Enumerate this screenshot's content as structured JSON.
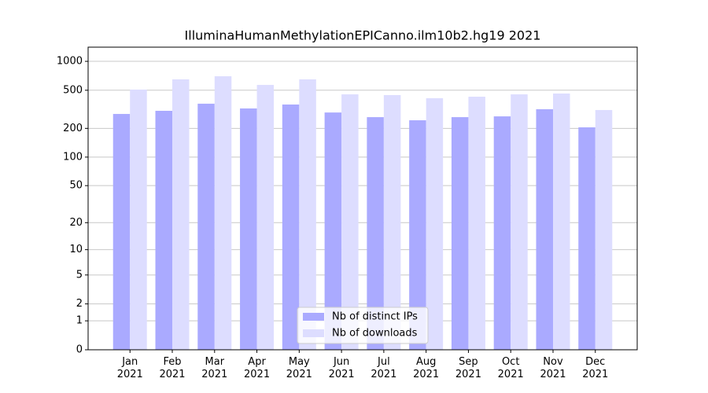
{
  "chart_data": {
    "type": "bar",
    "title": "IlluminaHumanMethylationEPICanno.ilm10b2.hg19 2021",
    "categories": [
      "Jan\n2021",
      "Feb\n2021",
      "Mar\n2021",
      "Apr\n2021",
      "May\n2021",
      "Jun\n2021",
      "Jul\n2021",
      "Aug\n2021",
      "Sep\n2021",
      "Oct\n2021",
      "Nov\n2021",
      "Dec\n2021"
    ],
    "series": [
      {
        "name": "Nb of distinct IPs",
        "color": "#aaaaff",
        "values": [
          283,
          305,
          362,
          323,
          355,
          293,
          262,
          243,
          262,
          267,
          317,
          205
        ]
      },
      {
        "name": "Nb of downloads",
        "color": "#ddddff",
        "values": [
          508,
          649,
          699,
          568,
          649,
          453,
          445,
          413,
          428,
          453,
          462,
          311
        ]
      }
    ],
    "y_scale": "log1p",
    "ylim": [
      0,
      1405
    ],
    "yticks": [
      0,
      1,
      2,
      5,
      10,
      20,
      50,
      100,
      200,
      500,
      1000
    ],
    "grid": true,
    "legend": "lower center"
  }
}
